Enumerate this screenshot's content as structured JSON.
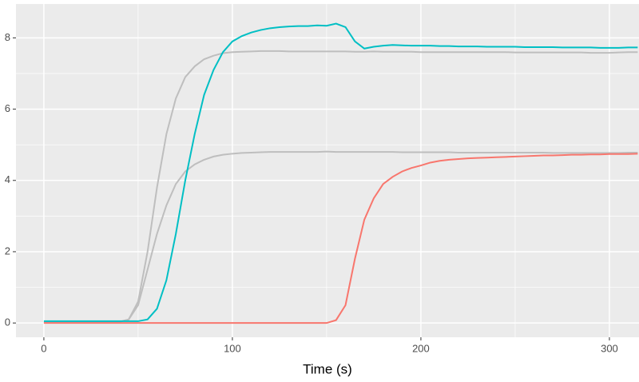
{
  "chart_data": {
    "type": "line",
    "x_label": "Time (s)",
    "x": [
      0,
      5,
      10,
      15,
      20,
      25,
      30,
      35,
      40,
      45,
      50,
      55,
      60,
      65,
      70,
      75,
      80,
      85,
      90,
      95,
      100,
      105,
      110,
      115,
      120,
      125,
      130,
      135,
      140,
      145,
      150,
      155,
      160,
      165,
      170,
      175,
      180,
      185,
      190,
      195,
      200,
      205,
      210,
      215,
      220,
      225,
      230,
      235,
      240,
      245,
      250,
      255,
      260,
      265,
      270,
      275,
      280,
      285,
      290,
      295,
      300,
      305,
      310,
      315
    ],
    "series": [
      {
        "color": "#bebebe",
        "values": [
          0.03,
          0.03,
          0.03,
          0.03,
          0.03,
          0.03,
          0.03,
          0.03,
          0.03,
          0.1,
          0.6,
          2.0,
          3.8,
          5.3,
          6.3,
          6.9,
          7.2,
          7.4,
          7.5,
          7.57,
          7.6,
          7.61,
          7.62,
          7.63,
          7.63,
          7.63,
          7.62,
          7.62,
          7.62,
          7.62,
          7.62,
          7.62,
          7.62,
          7.61,
          7.61,
          7.62,
          7.61,
          7.61,
          7.61,
          7.61,
          7.6,
          7.6,
          7.6,
          7.6,
          7.6,
          7.6,
          7.6,
          7.6,
          7.6,
          7.6,
          7.59,
          7.59,
          7.59,
          7.59,
          7.59,
          7.59,
          7.59,
          7.59,
          7.58,
          7.58,
          7.58,
          7.59,
          7.6,
          7.6
        ]
      },
      {
        "color": "#bebebe",
        "values": [
          0.03,
          0.03,
          0.03,
          0.03,
          0.03,
          0.03,
          0.03,
          0.03,
          0.03,
          0.1,
          0.5,
          1.5,
          2.5,
          3.3,
          3.9,
          4.25,
          4.45,
          4.58,
          4.67,
          4.72,
          4.75,
          4.77,
          4.78,
          4.79,
          4.8,
          4.8,
          4.8,
          4.8,
          4.8,
          4.8,
          4.81,
          4.8,
          4.8,
          4.8,
          4.8,
          4.8,
          4.8,
          4.8,
          4.79,
          4.79,
          4.79,
          4.79,
          4.79,
          4.79,
          4.78,
          4.78,
          4.78,
          4.78,
          4.78,
          4.78,
          4.78,
          4.78,
          4.78,
          4.78,
          4.77,
          4.77,
          4.77,
          4.77,
          4.77,
          4.77,
          4.77,
          4.77,
          4.78,
          4.78
        ]
      },
      {
        "color": "#00bfc4",
        "values": [
          0.05,
          0.05,
          0.05,
          0.05,
          0.05,
          0.05,
          0.05,
          0.05,
          0.05,
          0.05,
          0.05,
          0.1,
          0.4,
          1.2,
          2.5,
          4.0,
          5.3,
          6.4,
          7.1,
          7.6,
          7.9,
          8.05,
          8.15,
          8.22,
          8.27,
          8.3,
          8.32,
          8.33,
          8.33,
          8.35,
          8.34,
          8.4,
          8.3,
          7.9,
          7.7,
          7.75,
          7.78,
          7.8,
          7.79,
          7.78,
          7.78,
          7.78,
          7.77,
          7.77,
          7.76,
          7.76,
          7.76,
          7.75,
          7.75,
          7.75,
          7.75,
          7.74,
          7.74,
          7.74,
          7.74,
          7.73,
          7.73,
          7.73,
          7.73,
          7.72,
          7.72,
          7.72,
          7.73,
          7.73
        ]
      },
      {
        "color": "#f8766d",
        "values": [
          0,
          0,
          0,
          0,
          0,
          0,
          0,
          0,
          0,
          0,
          0,
          0,
          0,
          0,
          0,
          0,
          0,
          0,
          0,
          0,
          0,
          0,
          0,
          0,
          0,
          0,
          0,
          0,
          0,
          0,
          0,
          0.08,
          0.5,
          1.8,
          2.9,
          3.5,
          3.9,
          4.1,
          4.25,
          4.35,
          4.42,
          4.5,
          4.55,
          4.58,
          4.6,
          4.62,
          4.63,
          4.64,
          4.65,
          4.66,
          4.67,
          4.68,
          4.69,
          4.7,
          4.7,
          4.71,
          4.72,
          4.72,
          4.73,
          4.73,
          4.74,
          4.74,
          4.74,
          4.75
        ]
      }
    ],
    "xlim": [
      -14.8,
      315.7
    ],
    "xticks": [
      0,
      100,
      200,
      300
    ],
    "x_minor_ticks": [
      50,
      150,
      250
    ],
    "ylim": [
      -0.4,
      8.95
    ],
    "yticks": [
      0,
      2,
      4,
      6,
      8
    ],
    "y_minor_ticks": [
      1,
      3,
      5,
      7
    ],
    "grid": true
  }
}
